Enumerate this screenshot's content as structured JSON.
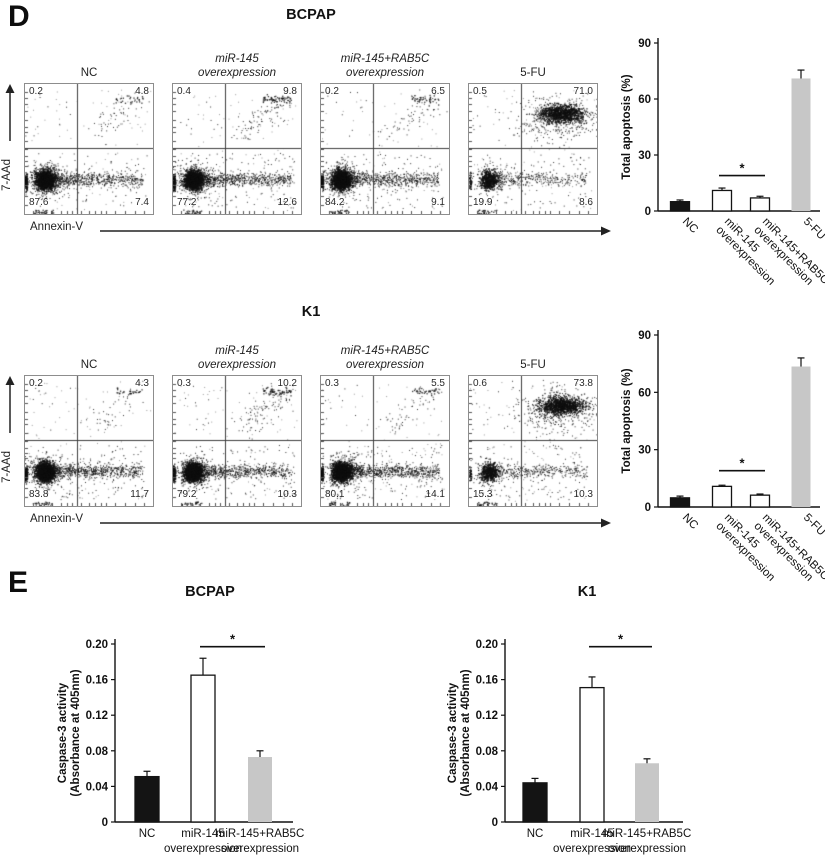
{
  "figure": {
    "panel_d_label": "D",
    "panel_e_label": "E"
  },
  "panel_d": {
    "rows": [
      {
        "cell_line": "BCPAP",
        "y_axis_label": "7-AAd",
        "x_axis_label": "Annexin-V",
        "plots": [
          {
            "title_lines": [
              "NC"
            ],
            "italic": false,
            "ul": "0.2",
            "ur": "4.8",
            "ll": "87.6",
            "lr": "7.4"
          },
          {
            "title_lines": [
              "miR-145",
              "overexpression"
            ],
            "italic": true,
            "ul": "0.4",
            "ur": "9.8",
            "ll": "77.2",
            "lr": "12.6"
          },
          {
            "title_lines": [
              "miR-145+RAB5C",
              "overexpression"
            ],
            "italic": true,
            "ul": "0.2",
            "ur": "6.5",
            "ll": "84.2",
            "lr": "9.1"
          },
          {
            "title_lines": [
              "5-FU"
            ],
            "italic": false,
            "ul": "0.5",
            "ur": "71.0",
            "ll": "19.9",
            "lr": "8.6"
          }
        ]
      },
      {
        "cell_line": "K1",
        "y_axis_label": "7-AAd",
        "x_axis_label": "Annexin-V",
        "plots": [
          {
            "title_lines": [
              "NC"
            ],
            "italic": false,
            "ul": "0.2",
            "ur": "4.3",
            "ll": "83.8",
            "lr": "11.7"
          },
          {
            "title_lines": [
              "miR-145",
              "overexpression"
            ],
            "italic": true,
            "ul": "0.3",
            "ur": "10.2",
            "ll": "79.2",
            "lr": "10.3"
          },
          {
            "title_lines": [
              "miR-145+RAB5C",
              "overexpression"
            ],
            "italic": true,
            "ul": "0.3",
            "ur": "5.5",
            "ll": "80.1",
            "lr": "14.1"
          },
          {
            "title_lines": [
              "5-FU"
            ],
            "italic": false,
            "ul": "0.6",
            "ur": "73.8",
            "ll": "15.3",
            "lr": "10.3"
          }
        ]
      }
    ]
  },
  "chart_data": [
    {
      "id": "total_apoptosis_bcpap",
      "type": "bar",
      "title": "BCPAP",
      "ylabel": "Total apoptosis (%)",
      "ylim": [
        0,
        90
      ],
      "yticks": [
        "0",
        "30",
        "60",
        "90"
      ],
      "categories": [
        "NC",
        "miR-145 overexpression",
        "miR-145+RAB5C overexpression",
        "5-FU"
      ],
      "categories_lines": [
        [
          "NC"
        ],
        [
          "miR-145",
          "overexpression"
        ],
        [
          "miR-145+RAB5C",
          "overexpression"
        ],
        [
          "5-FU"
        ]
      ],
      "values": [
        5,
        11,
        7,
        71
      ],
      "errors": [
        0.9,
        1.3,
        0.9,
        4.5
      ],
      "bar_colors": [
        "#141414",
        "#ffffff",
        "#ffffff",
        "#c7c7c7"
      ],
      "bar_strokes": [
        "#141414",
        "#141414",
        "#141414",
        "none"
      ],
      "significance": {
        "label": "*",
        "between": [
          1,
          2
        ],
        "y_value": 19
      }
    },
    {
      "id": "total_apoptosis_k1",
      "type": "bar",
      "title": "K1",
      "ylabel": "Total apoptosis (%)",
      "ylim": [
        0,
        90
      ],
      "yticks": [
        "0",
        "30",
        "60",
        "90"
      ],
      "categories": [
        "NC",
        "miR-145 overexpression",
        "miR-145+RAB5C overexpression",
        "5-FU"
      ],
      "categories_lines": [
        [
          "NC"
        ],
        [
          "miR-145",
          "overexpression"
        ],
        [
          "miR-145+RAB5C",
          "overexpression"
        ],
        [
          "5-FU"
        ]
      ],
      "values": [
        4.8,
        10.8,
        6.2,
        73.5
      ],
      "errors": [
        0.9,
        0.6,
        0.6,
        4.5
      ],
      "bar_colors": [
        "#141414",
        "#ffffff",
        "#ffffff",
        "#c7c7c7"
      ],
      "bar_strokes": [
        "#141414",
        "#141414",
        "#141414",
        "none"
      ],
      "significance": {
        "label": "*",
        "between": [
          1,
          2
        ],
        "y_value": 19
      }
    },
    {
      "id": "caspase3_bcpap",
      "type": "bar",
      "title": "BCPAP",
      "ylabel_lines": [
        "Caspase-3 activity",
        "(Absorbance at 405nm)"
      ],
      "ylim": [
        0,
        0.2
      ],
      "yticks": [
        "0",
        "0.04",
        "0.08",
        "0.12",
        "0.16",
        "0.20"
      ],
      "categories": [
        "NC",
        "miR-145 overexpression",
        "miR-145+RAB5C overexpression"
      ],
      "categories_lines": [
        [
          "NC"
        ],
        [
          "miR-145",
          "overexpression"
        ],
        [
          "miR-145+RAB5C",
          "overexpression"
        ]
      ],
      "values": [
        0.051,
        0.165,
        0.073
      ],
      "errors": [
        0.006,
        0.019,
        0.007
      ],
      "bar_colors": [
        "#141414",
        "#ffffff",
        "#c7c7c7"
      ],
      "bar_strokes": [
        "#141414",
        "#141414",
        "none"
      ],
      "significance": {
        "label": "*",
        "between": [
          1,
          2
        ],
        "y_value": 0.197
      }
    },
    {
      "id": "caspase3_k1",
      "type": "bar",
      "title": "K1",
      "ylabel_lines": [
        "Caspase-3 activity",
        "(Absorbance at 405nm)"
      ],
      "ylim": [
        0,
        0.2
      ],
      "yticks": [
        "0",
        "0.04",
        "0.08",
        "0.12",
        "0.16",
        "0.20"
      ],
      "categories": [
        "NC",
        "miR-145 overexpression",
        "miR-145+RAB5C overexpression"
      ],
      "categories_lines": [
        [
          "NC"
        ],
        [
          "miR-145",
          "overexpression"
        ],
        [
          "miR-145+RAB5C",
          "overexpression"
        ]
      ],
      "values": [
        0.044,
        0.151,
        0.066
      ],
      "errors": [
        0.005,
        0.012,
        0.005
      ],
      "bar_colors": [
        "#141414",
        "#ffffff",
        "#c7c7c7"
      ],
      "bar_strokes": [
        "#141414",
        "#141414",
        "none"
      ],
      "significance": {
        "label": "*",
        "between": [
          1,
          2
        ],
        "y_value": 0.197
      }
    }
  ]
}
